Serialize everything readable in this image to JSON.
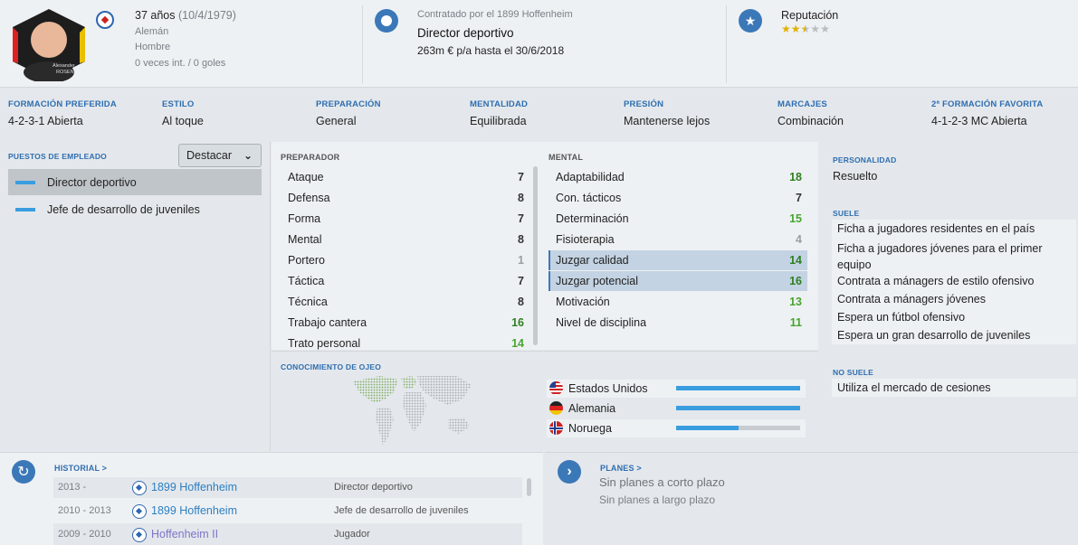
{
  "colors": {
    "accent": "#3b78b8",
    "highlight_row": "#c3d3e3",
    "green": "#47a52e",
    "dark_green": "#2e7f22"
  },
  "profile": {
    "age": "37 años",
    "birth": "(10/4/1979)",
    "nationality": "Alemán",
    "gender": "Hombre",
    "caps": "0 veces int. / 0 goles",
    "photo_caption_first": "Alexander",
    "photo_caption_last": "ROSEN"
  },
  "contract": {
    "hired_by": "Contratado por el 1899 Hoffenheim",
    "role": "Director deportivo",
    "salary": "263m € p/a hasta el 30/6/2018"
  },
  "reputation": {
    "label": "Reputación",
    "stars_filled": 2.5,
    "stars_total": 5,
    "star_icon": "star-icon"
  },
  "prefs": [
    {
      "label": "FORMACIÓN PREFERIDA",
      "value": "4-2-3-1 Abierta"
    },
    {
      "label": "ESTILO",
      "value": "Al toque"
    },
    {
      "label": "PREPARACIÓN",
      "value": "General"
    },
    {
      "label": "MENTALIDAD",
      "value": "Equilibrada"
    },
    {
      "label": "PRESIÓN",
      "value": "Mantenerse lejos"
    },
    {
      "label": "MARCAJES",
      "value": "Combinación"
    },
    {
      "label": "2ª FORMACIÓN FAVORITA",
      "value": "4-1-2-3 MC Abierta"
    }
  ],
  "jobs": {
    "label": "PUESTOS DE EMPLEADO",
    "dropdown": "Destacar",
    "items": [
      "Director deportivo",
      "Jefe de desarrollo de juveniles"
    ]
  },
  "coach": {
    "label": "PREPARADOR",
    "attrs": [
      {
        "name": "Ataque",
        "value": "7"
      },
      {
        "name": "Defensa",
        "value": "8"
      },
      {
        "name": "Forma",
        "value": "7"
      },
      {
        "name": "Mental",
        "value": "8"
      },
      {
        "name": "Portero",
        "value": "1"
      },
      {
        "name": "Táctica",
        "value": "7"
      },
      {
        "name": "Técnica",
        "value": "8"
      },
      {
        "name": "Trabajo cantera",
        "value": "16"
      },
      {
        "name": "Trato personal",
        "value": "14"
      }
    ]
  },
  "mental": {
    "label": "MENTAL",
    "attrs": [
      {
        "name": "Adaptabilidad",
        "value": "18"
      },
      {
        "name": "Con. tácticos",
        "value": "7"
      },
      {
        "name": "Determinación",
        "value": "15"
      },
      {
        "name": "Fisioterapia",
        "value": "4"
      },
      {
        "name": "Juzgar calidad",
        "value": "14"
      },
      {
        "name": "Juzgar potencial",
        "value": "16"
      },
      {
        "name": "Motivación",
        "value": "13"
      },
      {
        "name": "Nivel de disciplina",
        "value": "11"
      }
    ]
  },
  "personality": {
    "label": "PERSONALIDAD",
    "value": "Resuelto",
    "tends_label": "SUELE",
    "tends": [
      "Ficha a jugadores residentes en el país",
      "Ficha a jugadores jóvenes para el primer",
      "equipo",
      "Contrata a mánagers de estilo ofensivo",
      "Contrata a mánagers jóvenes",
      "Espera un fútbol ofensivo",
      "Espera un gran desarrollo de juveniles"
    ],
    "not_tends_label": "NO SUELE",
    "not_tends": [
      "Utiliza el mercado de cesiones"
    ]
  },
  "scouting": {
    "label": "CONOCIMIENTO DE OJEO",
    "countries": [
      {
        "name": "Estados Unidos",
        "knowledge": 1.0,
        "flag": "us-flag-icon"
      },
      {
        "name": "Alemania",
        "knowledge": 1.0,
        "flag": "de-flag-icon"
      },
      {
        "name": "Noruega",
        "knowledge": 0.5,
        "flag": "no-flag-icon"
      }
    ]
  },
  "history": {
    "label": "HISTORIAL >",
    "rows": [
      {
        "years": "2013 -",
        "club": "1899 Hoffenheim",
        "role": "Director deportivo"
      },
      {
        "years": "2010 - 2013",
        "club": "1899 Hoffenheim",
        "role": "Jefe de desarrollo de juveniles"
      },
      {
        "years": "2009 - 2010",
        "club": "Hoffenheim II",
        "role": "Jugador"
      }
    ]
  },
  "plans": {
    "label": "PLANES >",
    "short": "Sin planes a corto plazo",
    "long": "Sin planes a largo plazo"
  }
}
